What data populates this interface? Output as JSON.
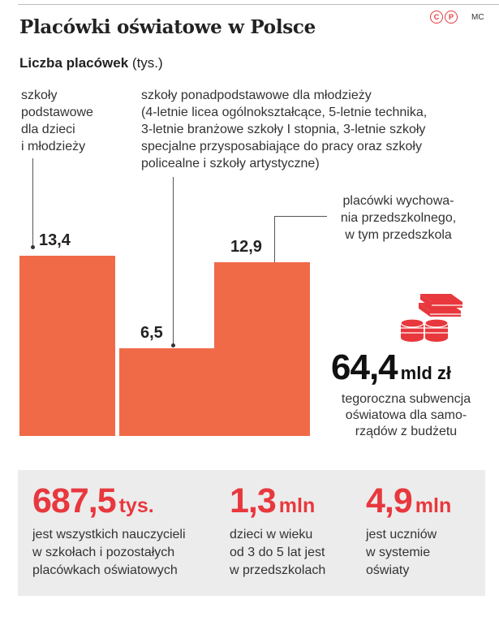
{
  "header": {
    "title": "Placówki oświatowe w Polsce",
    "copyright_c": "C",
    "copyright_p": "P",
    "author": "MC"
  },
  "subtitle": {
    "bold": "Liczba placówek",
    "unit": "(tys.)"
  },
  "chart_data": {
    "type": "bar",
    "title": "Liczba placówek",
    "unit": "(tys.)",
    "ylim": [
      0,
      13.4
    ],
    "categories": [
      "szkoły podstawowe dla dzieci i młodzieży",
      "szkoły ponadpodstawowe dla młodzieży (4-letnie licea ogólnokształcące, 5-letnie technika, 3-letnie branżowe szkoły I stopnia, 3-letnie szkoły specjalne przysposabiające do pracy oraz szkoły policealne i szkoły artystyczne)",
      "placówki wychowania przedszkolnego, w tym przedszkola"
    ],
    "values": [
      13.4,
      6.5,
      12.9
    ],
    "value_labels": [
      "13,4",
      "6,5",
      "12,9"
    ],
    "bar_color": "#f06a48",
    "grid": false
  },
  "labels": {
    "bar1": [
      "szkoły",
      "podstawowe",
      "dla dzieci",
      "i młodzieży"
    ],
    "bar2": [
      "szkoły ponadpodstawowe dla młodzieży",
      "(4-letnie licea ogólnokształcące, 5-letnie technika,",
      "3-letnie branżowe szkoły I stopnia, 3-letnie szkoły",
      "specjalne przysposabiające do pracy oraz szkoły",
      "policealne i szkoły artystyczne)"
    ],
    "bar3": [
      "placówki wychowa-",
      "nia przedszkolnego,",
      "w tym przedszkola"
    ]
  },
  "subsidy": {
    "icon": "money-stack-icon",
    "value": "64,4",
    "unit": "mld zł",
    "description": [
      "tegoroczna subwencja",
      "oświatowa dla samo-",
      "rządów z budżetu"
    ]
  },
  "stats": [
    {
      "value": "687,5",
      "unit": "tys.",
      "description": [
        "jest wszystkich nauczycieli",
        "w szkołach i pozostałych",
        "placówkach oświatowych"
      ]
    },
    {
      "value": "1,3",
      "unit": "mln",
      "description": [
        "dzieci w wieku",
        "od 3 do 5 lat jest",
        "w przedszkolach"
      ]
    },
    {
      "value": "4,9",
      "unit": "mln",
      "description": [
        "jest uczniów",
        "w systemie",
        "oświaty"
      ]
    }
  ],
  "colors": {
    "accent_red": "#e8383d",
    "bar": "#f06a48",
    "panel_bg": "#ececec"
  }
}
